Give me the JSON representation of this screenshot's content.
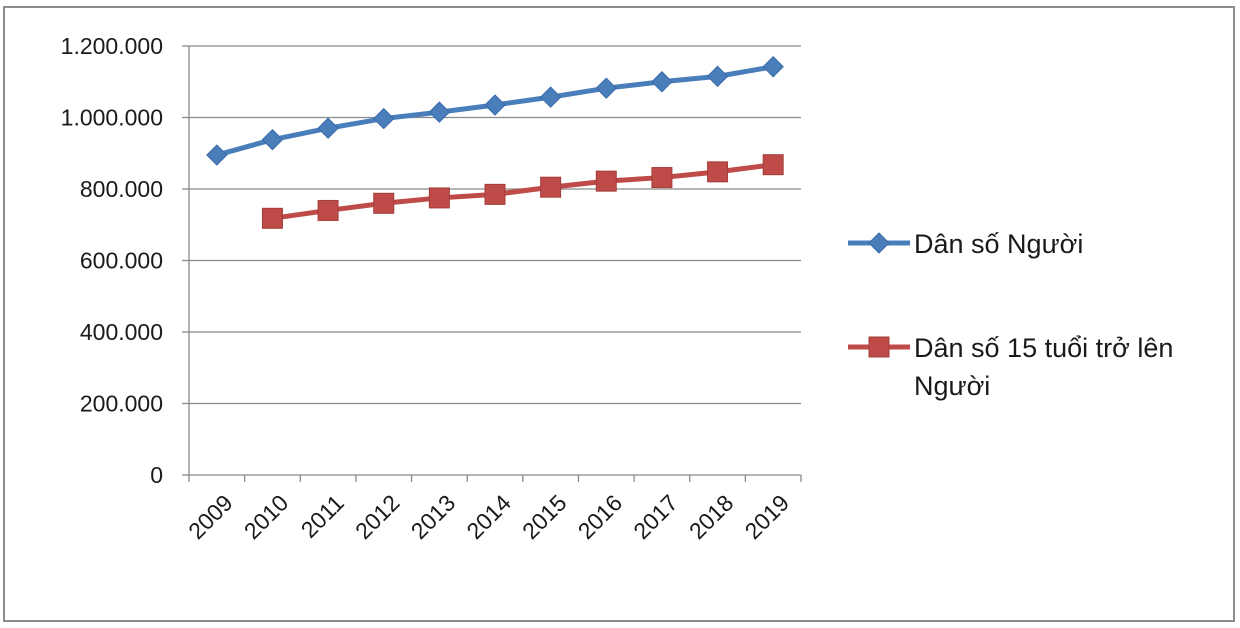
{
  "chart_data": {
    "type": "line",
    "categories": [
      "2009",
      "2010",
      "2011",
      "2012",
      "2013",
      "2014",
      "2015",
      "2016",
      "2017",
      "2018",
      "2019"
    ],
    "series": [
      {
        "name": "Dân số Người",
        "color": "#4a7ebb",
        "marker": "diamond",
        "values": [
          895000,
          938000,
          970000,
          997000,
          1015000,
          1035000,
          1057000,
          1082000,
          1100000,
          1115000,
          1142000
        ]
      },
      {
        "name": "Dân số 15 tuổi trở lên Người",
        "legend_lines": [
          "Dân số 15 tuổi trở lên",
          "Người"
        ],
        "color": "#be4b48",
        "marker": "square",
        "values": [
          null,
          718000,
          740000,
          760000,
          775000,
          785000,
          805000,
          822000,
          832000,
          848000,
          868000
        ]
      }
    ],
    "yticks": [
      "0",
      "200.000",
      "400.000",
      "600.000",
      "800.000",
      "1.000.000",
      "1.200.000"
    ],
    "ylim": [
      0,
      1200000
    ],
    "grid": true,
    "legend_position": "right",
    "title": "",
    "xlabel": "",
    "ylabel": ""
  }
}
